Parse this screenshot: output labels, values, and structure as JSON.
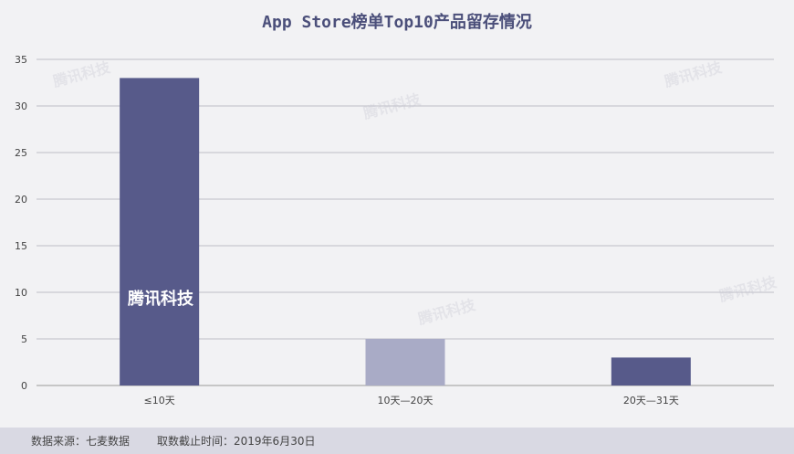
{
  "chart_data": {
    "type": "bar",
    "title": "App Store榜单Top10产品留存情况",
    "categories": [
      "≤10天",
      "10天—20天",
      "20天—31天"
    ],
    "values": [
      33,
      5,
      3
    ],
    "ylim": [
      0,
      35
    ],
    "yticks": [
      0,
      5,
      10,
      15,
      20,
      25,
      30,
      35
    ],
    "grid": true,
    "bar_colors": [
      "#575a8a",
      "#a9abc6",
      "#575a8a"
    ],
    "xlabel": "",
    "ylabel": ""
  },
  "footer": {
    "source": "数据来源：七麦数据",
    "cutoff": "取数截止时间：2019年6月30日"
  },
  "watermark": {
    "text": "腾讯科技"
  }
}
